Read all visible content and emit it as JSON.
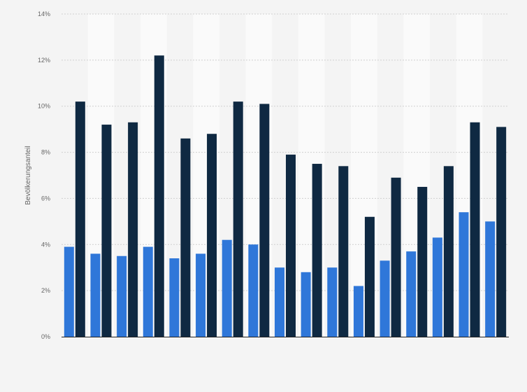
{
  "chart_data": {
    "type": "bar",
    "title": "",
    "xlabel": "",
    "ylabel": "Bevölkerungsanteil",
    "ylim": [
      0,
      14
    ],
    "yticks": [
      0,
      2,
      4,
      6,
      8,
      10,
      12,
      14
    ],
    "ytick_suffix": "%",
    "grid": true,
    "categories": [
      "",
      "",
      "",
      "",
      "",
      "",
      "",
      "",
      "",
      "",
      "",
      "",
      "",
      "",
      "",
      "",
      ""
    ],
    "series": [
      {
        "color": "#2f77d9",
        "values": [
          3.9,
          3.6,
          3.5,
          3.9,
          3.4,
          3.6,
          4.2,
          4.0,
          3.0,
          2.8,
          3.0,
          2.2,
          3.3,
          3.7,
          4.3,
          5.4,
          5.0
        ]
      },
      {
        "color": "#0f2942",
        "values": [
          10.2,
          9.2,
          9.3,
          12.2,
          8.6,
          8.8,
          10.2,
          10.1,
          7.9,
          7.5,
          7.4,
          5.2,
          6.9,
          6.5,
          7.4,
          9.3,
          9.1
        ]
      }
    ],
    "colors": {
      "background": "#f4f4f4",
      "band": "#fafafa",
      "grid": "#d0d0d0",
      "axis": "#222222"
    }
  }
}
